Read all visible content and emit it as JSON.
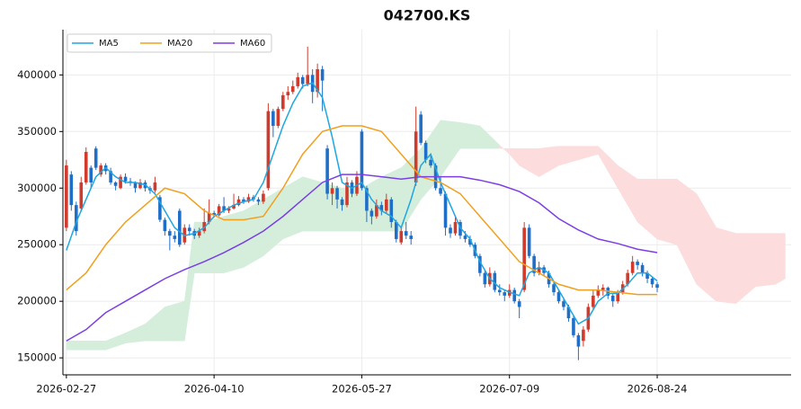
{
  "chart_data": {
    "type": "candlestick",
    "title": "042700.KS",
    "xlim": [
      -0.7,
      147.2
    ],
    "xticks": [
      {
        "value": 0,
        "label": "2026-02-27"
      },
      {
        "value": 30,
        "label": "2026-04-10"
      },
      {
        "value": 60,
        "label": "2026-05-27"
      },
      {
        "value": 90,
        "label": "2026-07-09"
      },
      {
        "value": 120,
        "label": "2026-08-24"
      }
    ],
    "ylim": [
      135000,
      440000
    ],
    "yticks": [
      150000,
      200000,
      250000,
      300000,
      350000,
      400000
    ],
    "grid": true,
    "legend": "upper left",
    "up_color": "#d13b2d",
    "down_color": "#1f6fc9",
    "ohlc": [
      [
        265000,
        325000,
        262000,
        320000
      ],
      [
        312000,
        315000,
        280000,
        285000
      ],
      [
        285000,
        288000,
        258000,
        262000
      ],
      [
        282000,
        310000,
        280000,
        305000
      ],
      [
        305000,
        336000,
        303000,
        332000
      ],
      [
        318000,
        320000,
        300000,
        305000
      ],
      [
        335000,
        337000,
        316000,
        318000
      ],
      [
        312000,
        322000,
        310000,
        320000
      ],
      [
        320000,
        322000,
        312000,
        315000
      ],
      [
        315000,
        318000,
        303000,
        305000
      ],
      [
        305000,
        306000,
        298000,
        302000
      ],
      [
        300000,
        312000,
        299000,
        310000
      ],
      [
        310000,
        313000,
        304000,
        306000
      ],
      [
        306000,
        309000,
        302000,
        305000
      ],
      [
        305000,
        306000,
        296000,
        300000
      ],
      [
        300000,
        308000,
        299000,
        305000
      ],
      [
        305000,
        307000,
        297000,
        300000
      ],
      [
        300000,
        302000,
        295000,
        298000
      ],
      [
        298000,
        310000,
        296000,
        305000
      ],
      [
        292000,
        294000,
        270000,
        272000
      ],
      [
        272000,
        274000,
        258000,
        262000
      ],
      [
        262000,
        264000,
        245000,
        258000
      ],
      [
        258000,
        262000,
        252000,
        255000
      ],
      [
        280000,
        282000,
        248000,
        250000
      ],
      [
        252000,
        268000,
        250000,
        265000
      ],
      [
        265000,
        268000,
        258000,
        262000
      ],
      [
        262000,
        264000,
        255000,
        258000
      ],
      [
        258000,
        265000,
        256000,
        262000
      ],
      [
        262000,
        282000,
        260000,
        270000
      ],
      [
        270000,
        290000,
        268000,
        278000
      ],
      [
        278000,
        280000,
        274000,
        276000
      ],
      [
        276000,
        286000,
        275000,
        284000
      ],
      [
        284000,
        292000,
        278000,
        280000
      ],
      [
        280000,
        284000,
        278000,
        282000
      ],
      [
        282000,
        295000,
        281000,
        285000
      ],
      [
        285000,
        293000,
        284000,
        290000
      ],
      [
        290000,
        292000,
        286000,
        288000
      ],
      [
        288000,
        295000,
        287000,
        292000
      ],
      [
        292000,
        294000,
        288000,
        290000
      ],
      [
        290000,
        292000,
        285000,
        288000
      ],
      [
        288000,
        298000,
        286000,
        295000
      ],
      [
        300000,
        375000,
        298000,
        368000
      ],
      [
        368000,
        370000,
        345000,
        355000
      ],
      [
        355000,
        372000,
        353000,
        370000
      ],
      [
        370000,
        385000,
        368000,
        382000
      ],
      [
        382000,
        390000,
        378000,
        385000
      ],
      [
        385000,
        395000,
        383000,
        390000
      ],
      [
        390000,
        402000,
        388000,
        398000
      ],
      [
        398000,
        400000,
        388000,
        392000
      ],
      [
        392000,
        425000,
        390000,
        400000
      ],
      [
        400000,
        405000,
        375000,
        385000
      ],
      [
        385000,
        410000,
        380000,
        405000
      ],
      [
        405000,
        408000,
        368000,
        395000
      ],
      [
        335000,
        338000,
        290000,
        295000
      ],
      [
        295000,
        305000,
        285000,
        300000
      ],
      [
        300000,
        302000,
        282000,
        290000
      ],
      [
        290000,
        292000,
        280000,
        285000
      ],
      [
        285000,
        310000,
        283000,
        305000
      ],
      [
        305000,
        307000,
        292000,
        295000
      ],
      [
        295000,
        315000,
        293000,
        310000
      ],
      [
        350000,
        352000,
        298000,
        300000
      ],
      [
        300000,
        302000,
        270000,
        280000
      ],
      [
        280000,
        282000,
        268000,
        275000
      ],
      [
        275000,
        290000,
        273000,
        285000
      ],
      [
        285000,
        288000,
        276000,
        280000
      ],
      [
        280000,
        295000,
        278000,
        290000
      ],
      [
        290000,
        292000,
        265000,
        270000
      ],
      [
        270000,
        272000,
        252000,
        255000
      ],
      [
        252000,
        265000,
        250000,
        262000
      ],
      [
        262000,
        270000,
        255000,
        258000
      ],
      [
        258000,
        262000,
        250000,
        255000
      ],
      [
        305000,
        372000,
        302000,
        350000
      ],
      [
        365000,
        368000,
        338000,
        340000
      ],
      [
        340000,
        342000,
        322000,
        325000
      ],
      [
        325000,
        330000,
        318000,
        320000
      ],
      [
        320000,
        322000,
        298000,
        300000
      ],
      [
        300000,
        310000,
        293000,
        295000
      ],
      [
        295000,
        297000,
        258000,
        265000
      ],
      [
        265000,
        268000,
        256000,
        260000
      ],
      [
        260000,
        275000,
        258000,
        270000
      ],
      [
        270000,
        272000,
        255000,
        258000
      ],
      [
        258000,
        262000,
        252000,
        255000
      ],
      [
        255000,
        258000,
        248000,
        250000
      ],
      [
        250000,
        252000,
        238000,
        240000
      ],
      [
        240000,
        242000,
        222000,
        225000
      ],
      [
        225000,
        228000,
        212000,
        215000
      ],
      [
        215000,
        230000,
        213000,
        225000
      ],
      [
        225000,
        227000,
        208000,
        210000
      ],
      [
        210000,
        215000,
        205000,
        208000
      ],
      [
        208000,
        210000,
        200000,
        205000
      ],
      [
        205000,
        215000,
        203000,
        210000
      ],
      [
        210000,
        212000,
        198000,
        200000
      ],
      [
        200000,
        202000,
        185000,
        195000
      ],
      [
        210000,
        270000,
        208000,
        265000
      ],
      [
        265000,
        268000,
        238000,
        240000
      ],
      [
        240000,
        242000,
        222000,
        225000
      ],
      [
        225000,
        235000,
        223000,
        230000
      ],
      [
        230000,
        232000,
        222000,
        225000
      ],
      [
        225000,
        227000,
        212000,
        215000
      ],
      [
        215000,
        217000,
        205000,
        208000
      ],
      [
        208000,
        210000,
        198000,
        200000
      ],
      [
        200000,
        202000,
        192000,
        195000
      ],
      [
        195000,
        197000,
        182000,
        185000
      ],
      [
        185000,
        187000,
        168000,
        170000
      ],
      [
        170000,
        172000,
        148000,
        160000
      ],
      [
        165000,
        178000,
        160000,
        175000
      ],
      [
        175000,
        198000,
        173000,
        195000
      ],
      [
        195000,
        210000,
        193000,
        205000
      ],
      [
        205000,
        214000,
        203000,
        210000
      ],
      [
        210000,
        215000,
        205000,
        212000
      ],
      [
        212000,
        213000,
        202000,
        205000
      ],
      [
        205000,
        207000,
        195000,
        200000
      ],
      [
        200000,
        210000,
        198000,
        208000
      ],
      [
        208000,
        218000,
        206000,
        215000
      ],
      [
        215000,
        228000,
        213000,
        225000
      ],
      [
        225000,
        240000,
        223000,
        235000
      ],
      [
        235000,
        237000,
        228000,
        232000
      ],
      [
        232000,
        234000,
        222000,
        225000
      ],
      [
        225000,
        227000,
        216000,
        220000
      ],
      [
        220000,
        222000,
        212000,
        215000
      ],
      [
        215000,
        217000,
        208000,
        212000
      ]
    ],
    "series": [
      {
        "name": "MA5",
        "color": "#1ea7e0",
        "x": [
          0,
          2,
          4,
          6,
          8,
          10,
          12,
          14,
          16,
          18,
          20,
          22,
          24,
          26,
          28,
          30,
          32,
          34,
          36,
          38,
          40,
          42,
          44,
          46,
          48,
          50,
          52,
          54,
          56,
          58,
          60,
          62,
          64,
          66,
          68,
          70,
          72,
          74,
          76,
          78,
          80,
          82,
          84,
          86,
          88,
          90,
          92,
          94,
          96,
          98,
          100,
          102,
          104,
          106,
          108,
          110,
          112,
          114,
          116,
          118,
          120
        ],
        "values": [
          245000,
          270000,
          290000,
          310000,
          318000,
          310000,
          305000,
          305000,
          303000,
          295000,
          280000,
          265000,
          258000,
          260000,
          265000,
          275000,
          280000,
          285000,
          288000,
          290000,
          305000,
          330000,
          355000,
          375000,
          390000,
          393000,
          380000,
          345000,
          305000,
          300000,
          305000,
          290000,
          280000,
          275000,
          265000,
          290000,
          320000,
          330000,
          305000,
          285000,
          265000,
          255000,
          235000,
          220000,
          212000,
          208000,
          205000,
          225000,
          230000,
          225000,
          210000,
          195000,
          180000,
          185000,
          200000,
          207000,
          207000,
          215000,
          225000,
          225000,
          218000
        ]
      },
      {
        "name": "MA20",
        "color": "#f0a01e",
        "x": [
          0,
          4,
          8,
          12,
          16,
          20,
          24,
          28,
          32,
          36,
          40,
          44,
          48,
          52,
          56,
          60,
          64,
          68,
          72,
          76,
          80,
          84,
          88,
          92,
          96,
          100,
          104,
          108,
          112,
          116,
          120
        ],
        "values": [
          210000,
          225000,
          250000,
          270000,
          285000,
          300000,
          295000,
          280000,
          272000,
          272000,
          275000,
          300000,
          330000,
          350000,
          355000,
          355000,
          350000,
          330000,
          310000,
          305000,
          295000,
          275000,
          255000,
          235000,
          225000,
          215000,
          210000,
          210000,
          208000,
          206000,
          206000
        ]
      },
      {
        "name": "MA60",
        "color": "#7b3fe4",
        "x": [
          0,
          4,
          8,
          12,
          16,
          20,
          24,
          28,
          32,
          36,
          40,
          44,
          48,
          52,
          56,
          60,
          64,
          68,
          72,
          76,
          80,
          84,
          88,
          92,
          96,
          100,
          104,
          108,
          112,
          116,
          120
        ],
        "values": [
          165000,
          175000,
          190000,
          200000,
          210000,
          220000,
          228000,
          235000,
          243000,
          252000,
          262000,
          275000,
          290000,
          305000,
          312000,
          312000,
          310000,
          308000,
          310000,
          310000,
          310000,
          307000,
          303000,
          297000,
          287000,
          273000,
          263000,
          255000,
          251000,
          246000,
          243000
        ]
      }
    ],
    "cloud": {
      "up_color": "#d5eedc",
      "down_color": "#fcdcdc",
      "x": [
        0,
        4,
        8,
        12,
        16,
        20,
        24,
        26,
        28,
        32,
        36,
        40,
        44,
        48,
        52,
        56,
        60,
        64,
        68,
        72,
        76,
        80,
        84,
        88,
        90,
        92,
        96,
        100,
        104,
        108,
        112,
        116,
        120,
        124,
        128,
        132,
        136,
        140,
        144,
        146
      ],
      "span_a": [
        165000,
        165000,
        165000,
        172000,
        180000,
        195000,
        200000,
        270000,
        270000,
        275000,
        280000,
        290000,
        300000,
        310000,
        305000,
        300000,
        300000,
        310000,
        318000,
        335000,
        360000,
        358000,
        355000,
        338000,
        330000,
        320000,
        310000,
        320000,
        325000,
        330000,
        300000,
        270000,
        255000,
        250000,
        215000,
        200000,
        198000,
        213000,
        215000,
        220000
      ],
      "span_b": [
        157000,
        157000,
        157000,
        163000,
        165000,
        165000,
        165000,
        225000,
        225000,
        225000,
        230000,
        240000,
        255000,
        262000,
        262000,
        262000,
        262000,
        262000,
        262000,
        290000,
        310000,
        335000,
        335000,
        335000,
        335000,
        335000,
        335000,
        337000,
        337000,
        337000,
        320000,
        308000,
        308000,
        308000,
        295000,
        265000,
        260000,
        260000,
        260000,
        260000
      ]
    }
  }
}
